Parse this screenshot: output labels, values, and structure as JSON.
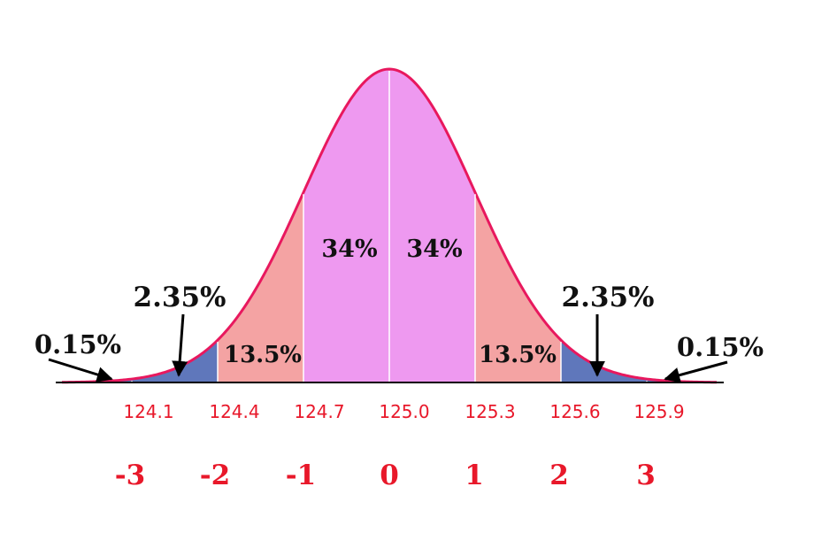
{
  "x_values": [
    "124.1",
    "124.4",
    "124.7",
    "125.0",
    "125.3",
    "125.6",
    "125.9"
  ],
  "sigma_labels": [
    "-3",
    "-2",
    "-1",
    "0",
    "1",
    "2",
    "3"
  ],
  "region_labels": {
    "center_left": "34%",
    "center_right": "34%",
    "mid_left": "13.5%",
    "mid_right": "13.5%",
    "tail2_left": "2.35%",
    "tail2_right": "2.35%",
    "tail3_left": "0.15%",
    "tail3_right": "0.15%"
  },
  "colors": {
    "center": "#ee99f0",
    "mid": "#f4a3a3",
    "tail": "#5f77bb",
    "curve": "#e8185e",
    "text_red": "#e8182a",
    "axis": "#000000"
  }
}
